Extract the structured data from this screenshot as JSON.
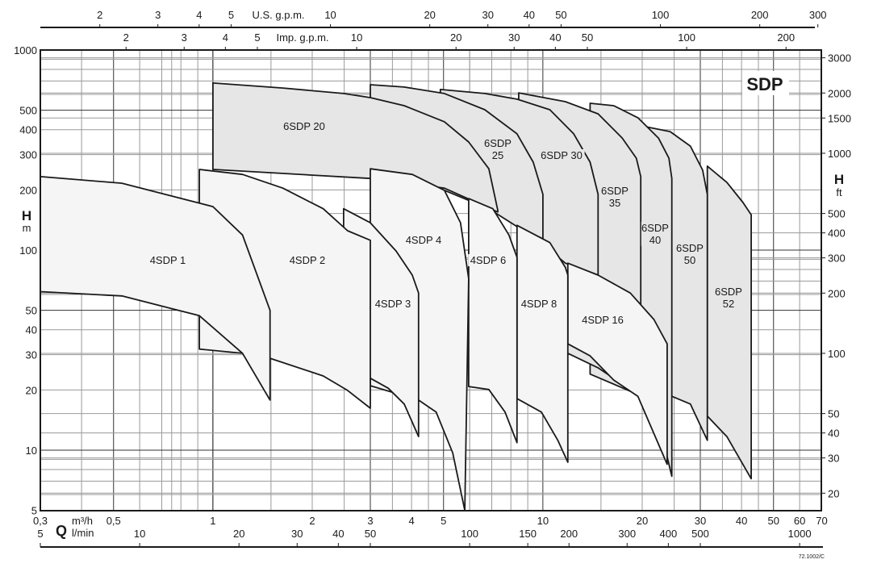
{
  "chart_data": {
    "type": "area",
    "title": "SDP",
    "footnote": "72.1002/C",
    "x_scale": "log",
    "y_scale": "log",
    "xlim": [
      0.3,
      70
    ],
    "ylim": [
      5,
      1000
    ],
    "grid": true,
    "xlabel": {
      "symbol": "Q",
      "unit_primary": "m³/h",
      "unit_secondary": "l/min"
    },
    "ylabel_left": {
      "symbol": "H",
      "unit": "m"
    },
    "ylabel_right": {
      "symbol": "H",
      "unit": "ft"
    },
    "top_axis_us": {
      "label": "U.S. g.p.m.",
      "ticks": [
        "2",
        "3",
        "4",
        "5",
        "10",
        "20",
        "30",
        "40",
        "50",
        "100",
        "200",
        "300"
      ]
    },
    "top_axis_imp": {
      "label": "Imp. g.p.m.",
      "ticks": [
        "2",
        "3",
        "4",
        "5",
        "10",
        "20",
        "30",
        "40",
        "50",
        "100",
        "200"
      ]
    },
    "bottom_axis_m3h": [
      {
        "v": 0.3,
        "t": "0,3"
      },
      {
        "v": 0.5,
        "t": "0,5"
      },
      {
        "v": 1,
        "t": "1"
      },
      {
        "v": 2,
        "t": "2"
      },
      {
        "v": 3,
        "t": "3"
      },
      {
        "v": 4,
        "t": "4"
      },
      {
        "v": 5,
        "t": "5"
      },
      {
        "v": 10,
        "t": "10"
      },
      {
        "v": 20,
        "t": "20"
      },
      {
        "v": 30,
        "t": "30"
      },
      {
        "v": 40,
        "t": "40"
      },
      {
        "v": 50,
        "t": "50"
      },
      {
        "v": 60,
        "t": "60"
      },
      {
        "v": 70,
        "t": "70"
      }
    ],
    "bottom_axis_lmin": [
      "5",
      "10",
      "20",
      "30",
      "40",
      "50",
      "100",
      "150",
      "200",
      "300",
      "400",
      "500",
      "1000"
    ],
    "left_axis_m": [
      "1000",
      "500",
      "400",
      "300",
      "200",
      "100",
      "50",
      "40",
      "30",
      "20",
      "10",
      "5"
    ],
    "right_axis_ft": [
      "3000",
      "2000",
      "1500",
      "1000",
      "500",
      "400",
      "300",
      "200",
      "100",
      "50",
      "40",
      "30",
      "20"
    ],
    "series": [
      {
        "name": "6SDP 52",
        "family": "6SDP",
        "upper": [
          [
            31.5,
            263
          ],
          [
            36.1,
            218
          ],
          [
            40.4,
            173
          ],
          [
            42.8,
            150
          ]
        ],
        "lower": [
          [
            31.5,
            14.8
          ],
          [
            36.1,
            11.7
          ],
          [
            42.8,
            7.2
          ]
        ]
      },
      {
        "name": "6SDP 50",
        "family": "6SDP",
        "upper": [
          [
            19.8,
            418
          ],
          [
            24.3,
            391
          ],
          [
            28,
            331
          ],
          [
            30.5,
            251
          ],
          [
            31.5,
            190
          ]
        ],
        "lower": [
          [
            19.8,
            20
          ],
          [
            24.6,
            18.6
          ],
          [
            28,
            17
          ],
          [
            31.5,
            11.2
          ]
        ]
      },
      {
        "name": "6SDP 40",
        "family": "6SDP",
        "upper": [
          [
            13.9,
            542
          ],
          [
            16.4,
            527
          ],
          [
            19.4,
            459
          ],
          [
            22.4,
            363
          ],
          [
            24.1,
            288
          ],
          [
            24.6,
            228
          ]
        ],
        "lower": [
          [
            13.9,
            24
          ],
          [
            19.4,
            19
          ],
          [
            22.4,
            14.1
          ],
          [
            24.6,
            7.4
          ]
        ]
      },
      {
        "name": "6SDP 35",
        "family": "6SDP",
        "upper": [
          [
            8.45,
            611
          ],
          [
            11.7,
            552
          ],
          [
            14.7,
            480
          ],
          [
            17.4,
            363
          ],
          [
            19.2,
            288
          ],
          [
            19.8,
            233
          ]
        ],
        "lower": [
          [
            8.45,
            40
          ],
          [
            14.7,
            25.8
          ],
          [
            17.4,
            21.4
          ],
          [
            19.8,
            18.6
          ]
        ]
      },
      {
        "name": "6SDP 30",
        "family": "6SDP",
        "upper": [
          [
            4.89,
            635
          ],
          [
            6.67,
            606
          ],
          [
            8.35,
            568
          ],
          [
            10.5,
            503
          ],
          [
            12.4,
            381
          ],
          [
            13.9,
            275
          ],
          [
            14.7,
            190
          ]
        ],
        "lower": [
          [
            4.89,
            204
          ],
          [
            6.86,
            161
          ],
          [
            8.35,
            137
          ],
          [
            11.7,
            86
          ],
          [
            14.7,
            75
          ]
        ]
      },
      {
        "name": "6SDP 25",
        "family": "6SDP",
        "upper": [
          [
            3.0,
            671
          ],
          [
            3.8,
            653
          ],
          [
            5.03,
            606
          ],
          [
            6.67,
            503
          ],
          [
            8.35,
            381
          ],
          [
            9.35,
            275
          ],
          [
            10,
            190
          ]
        ],
        "lower": [
          [
            3.0,
            255
          ],
          [
            5.03,
            199
          ],
          [
            6.86,
            161
          ],
          [
            8.35,
            131
          ],
          [
            10,
            114
          ]
        ]
      },
      {
        "name": "6SDP 20",
        "family": "6SDP",
        "upper": [
          [
            1.0,
            684
          ],
          [
            1.63,
            646
          ],
          [
            2.49,
            606
          ],
          [
            3.0,
            578
          ],
          [
            3.8,
            527
          ],
          [
            5.03,
            438
          ],
          [
            5.96,
            347
          ],
          [
            6.86,
            255
          ],
          [
            7.3,
            158
          ]
        ],
        "lower": [
          [
            1.0,
            253
          ],
          [
            3.0,
            228
          ],
          [
            5.03,
            204
          ],
          [
            7.3,
            155
          ]
        ]
      },
      {
        "name": "4SDP 16",
        "family": "4SDP",
        "upper": [
          [
            11.9,
            86
          ],
          [
            14.7,
            75
          ],
          [
            18.4,
            61
          ],
          [
            21.7,
            45
          ],
          [
            23.8,
            34
          ]
        ],
        "lower": [
          [
            11.9,
            34
          ],
          [
            13.9,
            29.6
          ],
          [
            16.4,
            22.4
          ],
          [
            19.4,
            18.6
          ],
          [
            23.8,
            8.5
          ]
        ]
      },
      {
        "name": "4SDP 8",
        "family": "4SDP",
        "upper": [
          [
            8.35,
            133
          ],
          [
            10.5,
            109
          ],
          [
            11.7,
            82
          ],
          [
            11.9,
            75
          ]
        ],
        "lower": [
          [
            8.35,
            18.1
          ],
          [
            9.9,
            15.5
          ],
          [
            11.1,
            11.2
          ],
          [
            11.9,
            8.7
          ]
        ]
      },
      {
        "name": "4SDP 6",
        "family": "4SDP",
        "upper": [
          [
            5.96,
            181
          ],
          [
            7.05,
            161
          ],
          [
            7.89,
            119
          ],
          [
            8.35,
            92
          ]
        ],
        "lower": [
          [
            5.96,
            20.8
          ],
          [
            6.86,
            20.1
          ],
          [
            7.68,
            15.5
          ],
          [
            8.35,
            10.9
          ]
        ]
      },
      {
        "name": "4SDP 4",
        "family": "4SDP",
        "upper": [
          [
            3.0,
            255
          ],
          [
            4.02,
            239
          ],
          [
            5.03,
            199
          ],
          [
            5.63,
            137
          ],
          [
            5.96,
            72
          ]
        ],
        "lower": [
          [
            3.0,
            21
          ],
          [
            4.2,
            17.8
          ],
          [
            4.75,
            15.5
          ],
          [
            5.33,
            9.7
          ],
          [
            5.8,
            5
          ]
        ]
      },
      {
        "name": "4SDP 3",
        "family": "4SDP",
        "upper": [
          [
            2.49,
            161
          ],
          [
            3.0,
            137
          ],
          [
            3.59,
            99
          ],
          [
            4.02,
            75
          ],
          [
            4.2,
            61
          ]
        ],
        "lower": [
          [
            2.49,
            25
          ],
          [
            3.0,
            22.9
          ],
          [
            3.4,
            20.4
          ],
          [
            3.8,
            17
          ],
          [
            4.2,
            11.7
          ]
        ]
      },
      {
        "name": "4SDP 2",
        "family": "4SDP",
        "upper": [
          [
            0.91,
            253
          ],
          [
            1.23,
            239
          ],
          [
            1.63,
            204
          ],
          [
            2.16,
            161
          ],
          [
            2.56,
            125
          ],
          [
            3.0,
            112
          ]
        ],
        "lower": [
          [
            0.91,
            32
          ],
          [
            1.23,
            30.5
          ],
          [
            1.49,
            28.8
          ],
          [
            2.16,
            23.5
          ],
          [
            2.56,
            19.9
          ],
          [
            3.0,
            16.2
          ]
        ]
      },
      {
        "name": "4SDP 1",
        "family": "4SDP",
        "upper": [
          [
            0.3,
            233
          ],
          [
            0.53,
            216
          ],
          [
            1.0,
            165
          ],
          [
            1.23,
            119
          ],
          [
            1.49,
            50
          ]
        ],
        "lower": [
          [
            0.3,
            62
          ],
          [
            0.53,
            59
          ],
          [
            0.91,
            47
          ],
          [
            1.23,
            30.5
          ],
          [
            1.49,
            17.8
          ]
        ]
      }
    ],
    "colors": {
      "6SDP": "#e6e6e6",
      "4SDP": "#f5f5f5",
      "line": "#1a1a1a",
      "grid": "#9a9a9a"
    }
  }
}
